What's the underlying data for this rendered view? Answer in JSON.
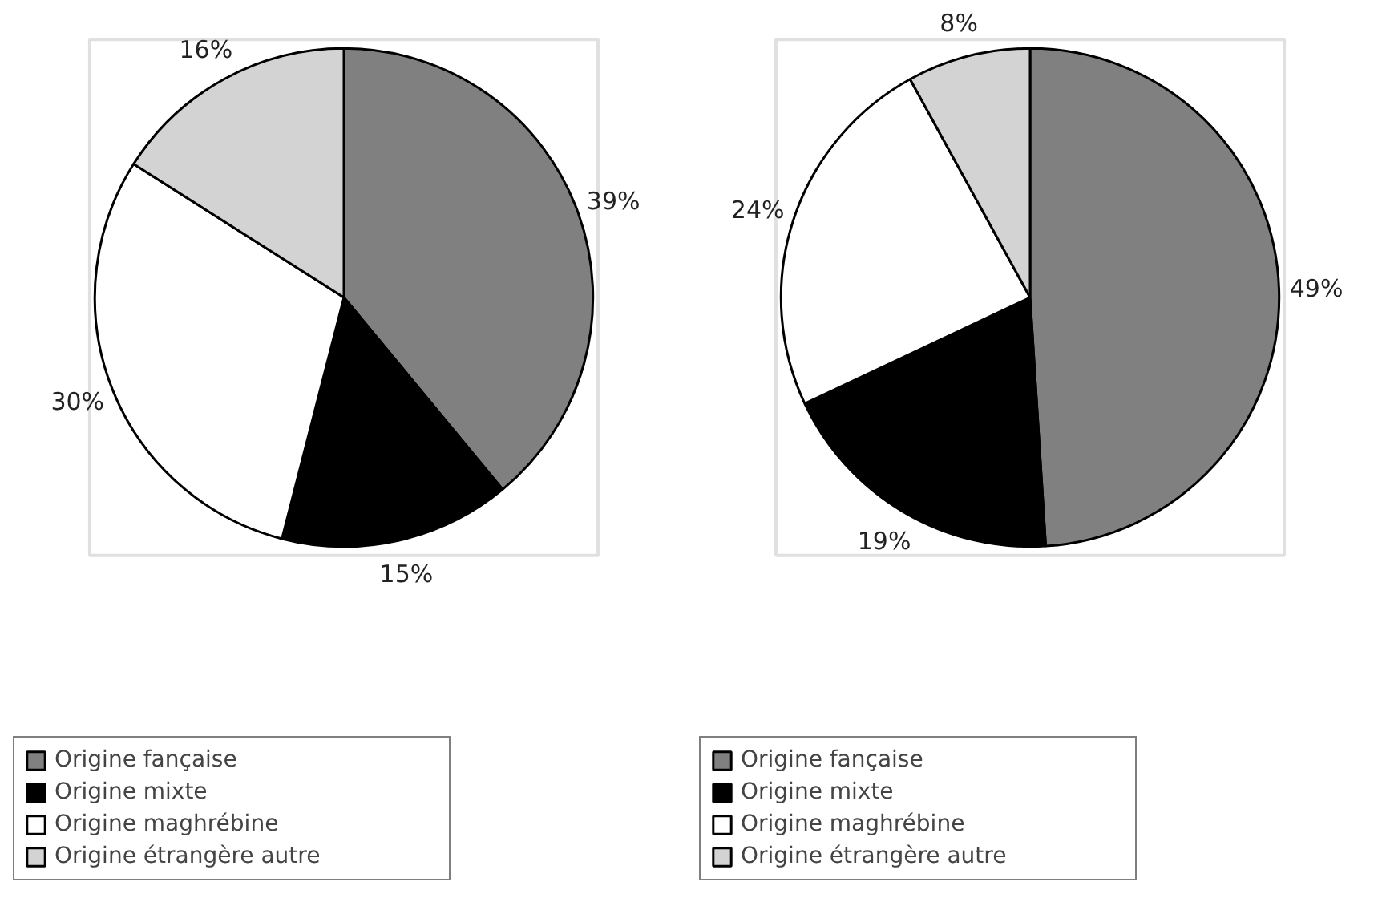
{
  "chart_data": [
    {
      "type": "pie",
      "categories": [
        "Origine fançaise",
        "Origine mixte",
        "Origine maghrébine",
        "Origine étrangère autre"
      ],
      "values": [
        39,
        15,
        30,
        16
      ],
      "value_labels": [
        "39%",
        "15%",
        "30%",
        "16%"
      ],
      "colors": [
        "#808080",
        "#000000",
        "#ffffff",
        "#d3d3d3"
      ],
      "legend": "bottom"
    },
    {
      "type": "pie",
      "categories": [
        "Origine fançaise",
        "Origine mixte",
        "Origine maghrébine",
        "Origine étrangère autre"
      ],
      "values": [
        49,
        19,
        24,
        8
      ],
      "value_labels": [
        "49%",
        "19%",
        "24%",
        "8%"
      ],
      "colors": [
        "#808080",
        "#000000",
        "#ffffff",
        "#d3d3d3"
      ],
      "legend": "bottom"
    }
  ]
}
